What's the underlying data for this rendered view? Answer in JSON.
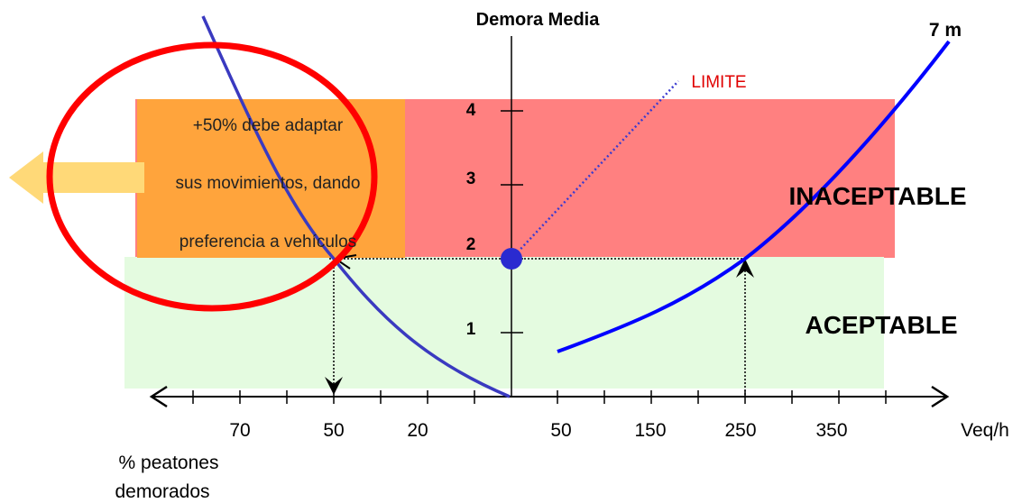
{
  "y_axis": {
    "title": "Demora Media",
    "ticks": [
      "4",
      "3",
      "2",
      "1"
    ]
  },
  "x_axis": {
    "left_ticks": [
      "70",
      "50",
      "20"
    ],
    "right_ticks": [
      "50",
      "150",
      "250",
      "350"
    ],
    "right_unit": "Veq/h",
    "left_title_line1": "% peatones",
    "left_title_line2": "demorados"
  },
  "zones": {
    "unacceptable": "INACEPTABLE",
    "acceptable": "ACEPTABLE",
    "orange_note": [
      "+50% debe adaptar",
      "sus movimientos, dando",
      "preferencia a vehículos"
    ]
  },
  "annotations": {
    "limit": "LIMITE",
    "width_curve": "7 m"
  },
  "colors": {
    "unacceptable_zone": "#ff8080",
    "acceptable_zone": "#e4fbe0",
    "orange_zone": "#ffa43c",
    "curve": "#0000ff",
    "left_curve": "#3a3ac0",
    "limit_text": "#e00000",
    "highlight_circle": "#ff0000",
    "arrow": "#ffd978",
    "limit_point": "#2a2ad0"
  }
}
